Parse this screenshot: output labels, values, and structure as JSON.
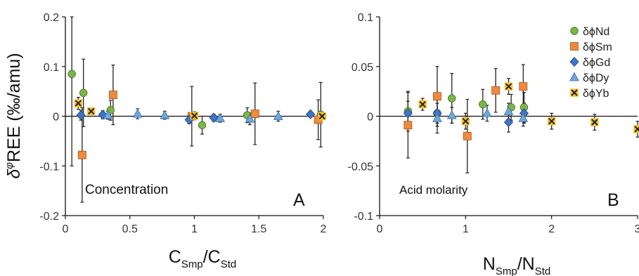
{
  "figure": {
    "ylabel_main": "δ",
    "ylabel_sup": "φ",
    "ylabel_rest": "REE (‰/amu)"
  },
  "styles": {
    "axis_color": "#111111",
    "error_bar_color": "#222222",
    "Nd": {
      "color": "#7ab648",
      "stroke": "#3f6b1f",
      "marker": "circle"
    },
    "Sm": {
      "color": "#f08a3c",
      "stroke": "#a4511a",
      "marker": "square"
    },
    "Gd": {
      "color": "#3f74c8",
      "stroke": "#1e3f7a",
      "marker": "diamond"
    },
    "Dy": {
      "color": "#6fa7dc",
      "stroke": "#3a6f9e",
      "marker": "triangle"
    },
    "Yb": {
      "color": "#f5c232",
      "stroke": "#8a6a10",
      "marker": "square-x"
    }
  },
  "chart_data": [
    {
      "type": "scatter",
      "panel_label": "A",
      "annotation": "Concentration",
      "xlabel_main": "C",
      "xlabel_sub1": "Smp",
      "xlabel_slash": "/C",
      "xlabel_sub2": "Std",
      "xlim": [
        0,
        2
      ],
      "ylim": [
        -0.2,
        0.2
      ],
      "xticks": [
        0,
        0.5,
        1,
        1.5,
        2
      ],
      "xtick_labels": [
        "0",
        "0.5",
        "1",
        "1.5",
        "2"
      ],
      "yticks": [
        -0.2,
        -0.1,
        0,
        0.1,
        0.2
      ],
      "ytick_labels": [
        "-0.2",
        "-0.1",
        "0",
        "0.1",
        "0.2"
      ],
      "series": [
        {
          "key": "Nd",
          "points": [
            {
              "x": 0.05,
              "y": 0.085,
              "err": 0.185
            },
            {
              "x": 0.14,
              "y": 0.047,
              "err": 0.068
            },
            {
              "x": 0.35,
              "y": 0.012,
              "err": 0.02
            },
            {
              "x": 1.06,
              "y": -0.018,
              "err": 0.018
            },
            {
              "x": 1.41,
              "y": 0.002,
              "err": 0.015
            },
            {
              "x": 1.98,
              "y": 0.003,
              "err": 0.065
            }
          ]
        },
        {
          "key": "Sm",
          "points": [
            {
              "x": 0.13,
              "y": -0.078,
              "err": 0.095
            },
            {
              "x": 0.37,
              "y": 0.043,
              "err": 0.06
            },
            {
              "x": 0.98,
              "y": 0.0,
              "err": 0.06
            },
            {
              "x": 1.47,
              "y": 0.005,
              "err": 0.062
            },
            {
              "x": 1.96,
              "y": -0.007,
              "err": 0.04
            }
          ]
        },
        {
          "key": "Gd",
          "points": [
            {
              "x": 0.12,
              "y": 0.002,
              "err": 0.01
            },
            {
              "x": 0.29,
              "y": 0.003,
              "err": 0.008
            },
            {
              "x": 0.96,
              "y": -0.007,
              "err": 0.008
            },
            {
              "x": 1.15,
              "y": -0.003,
              "err": 0.007
            },
            {
              "x": 1.9,
              "y": 0.004,
              "err": 0.006
            }
          ]
        },
        {
          "key": "Dy",
          "points": [
            {
              "x": 0.33,
              "y": 0.002,
              "err": 0.008
            },
            {
              "x": 0.56,
              "y": 0.005,
              "err": 0.01
            },
            {
              "x": 0.77,
              "y": 0.002,
              "err": 0.008
            },
            {
              "x": 1.2,
              "y": -0.004,
              "err": 0.008
            },
            {
              "x": 1.43,
              "y": -0.005,
              "err": 0.012
            },
            {
              "x": 1.65,
              "y": 0.0,
              "err": 0.01
            }
          ]
        },
        {
          "key": "Yb",
          "points": [
            {
              "x": 0.1,
              "y": 0.026,
              "err": 0.012
            },
            {
              "x": 0.2,
              "y": 0.01,
              "err": 0.006
            },
            {
              "x": 1.0,
              "y": 0.001,
              "err": 0.008
            },
            {
              "x": 1.99,
              "y": 0.0,
              "err": 0.006
            }
          ]
        }
      ]
    },
    {
      "type": "scatter",
      "panel_label": "B",
      "annotation": "Acid molarity",
      "xlabel_main": "N",
      "xlabel_sub1": "Smp",
      "xlabel_slash": "/N",
      "xlabel_sub2": "Std",
      "xlim": [
        0,
        3
      ],
      "ylim": [
        -0.1,
        0.1
      ],
      "xticks": [
        0,
        1,
        2,
        3
      ],
      "xtick_labels": [
        "0",
        "1",
        "2",
        "3"
      ],
      "yticks": [
        -0.1,
        -0.05,
        0,
        0.05,
        0.1
      ],
      "ytick_labels": [
        "-0.1",
        "-0.05",
        "0",
        "0.05",
        "0.1"
      ],
      "legend_position": "top-right",
      "series": [
        {
          "key": "Nd",
          "name": "δϕNd",
          "points": [
            {
              "x": 0.33,
              "y": 0.005,
              "err": 0.02
            },
            {
              "x": 0.67,
              "y": 0.003,
              "err": 0.02
            },
            {
              "x": 0.84,
              "y": 0.018,
              "err": 0.025
            },
            {
              "x": 1.2,
              "y": 0.012,
              "err": 0.015
            },
            {
              "x": 1.53,
              "y": 0.009,
              "err": 0.013
            },
            {
              "x": 1.68,
              "y": 0.009,
              "err": 0.015
            }
          ]
        },
        {
          "key": "Sm",
          "name": "δϕSm",
          "points": [
            {
              "x": 0.33,
              "y": -0.009,
              "err": 0.033
            },
            {
              "x": 0.67,
              "y": 0.02,
              "err": 0.03
            },
            {
              "x": 1.02,
              "y": -0.02,
              "err": 0.037
            },
            {
              "x": 1.35,
              "y": 0.026,
              "err": 0.022
            },
            {
              "x": 1.67,
              "y": 0.03,
              "err": 0.022
            }
          ]
        },
        {
          "key": "Gd",
          "name": "δϕGd",
          "points": [
            {
              "x": 0.33,
              "y": 0.003,
              "err": 0.012
            },
            {
              "x": 0.67,
              "y": 0.003,
              "err": 0.01
            },
            {
              "x": 1.5,
              "y": -0.006,
              "err": 0.01
            },
            {
              "x": 1.68,
              "y": 0.003,
              "err": 0.01
            }
          ]
        },
        {
          "key": "Dy",
          "name": "δϕDy",
          "points": [
            {
              "x": 0.67,
              "y": -0.002,
              "err": 0.008
            },
            {
              "x": 0.84,
              "y": 0.001,
              "err": 0.008
            },
            {
              "x": 1.25,
              "y": 0.003,
              "err": 0.008
            },
            {
              "x": 1.5,
              "y": 0.005,
              "err": 0.008
            },
            {
              "x": 1.67,
              "y": -0.002,
              "err": 0.008
            }
          ]
        },
        {
          "key": "Yb",
          "name": "δϕYb",
          "points": [
            {
              "x": 0.5,
              "y": 0.012,
              "err": 0.006
            },
            {
              "x": 1.0,
              "y": -0.005,
              "err": 0.008
            },
            {
              "x": 1.5,
              "y": 0.03,
              "err": 0.008
            },
            {
              "x": 2.0,
              "y": -0.005,
              "err": 0.008
            },
            {
              "x": 2.5,
              "y": -0.006,
              "err": 0.008
            },
            {
              "x": 3.0,
              "y": -0.013,
              "err": 0.008
            }
          ]
        }
      ]
    }
  ]
}
